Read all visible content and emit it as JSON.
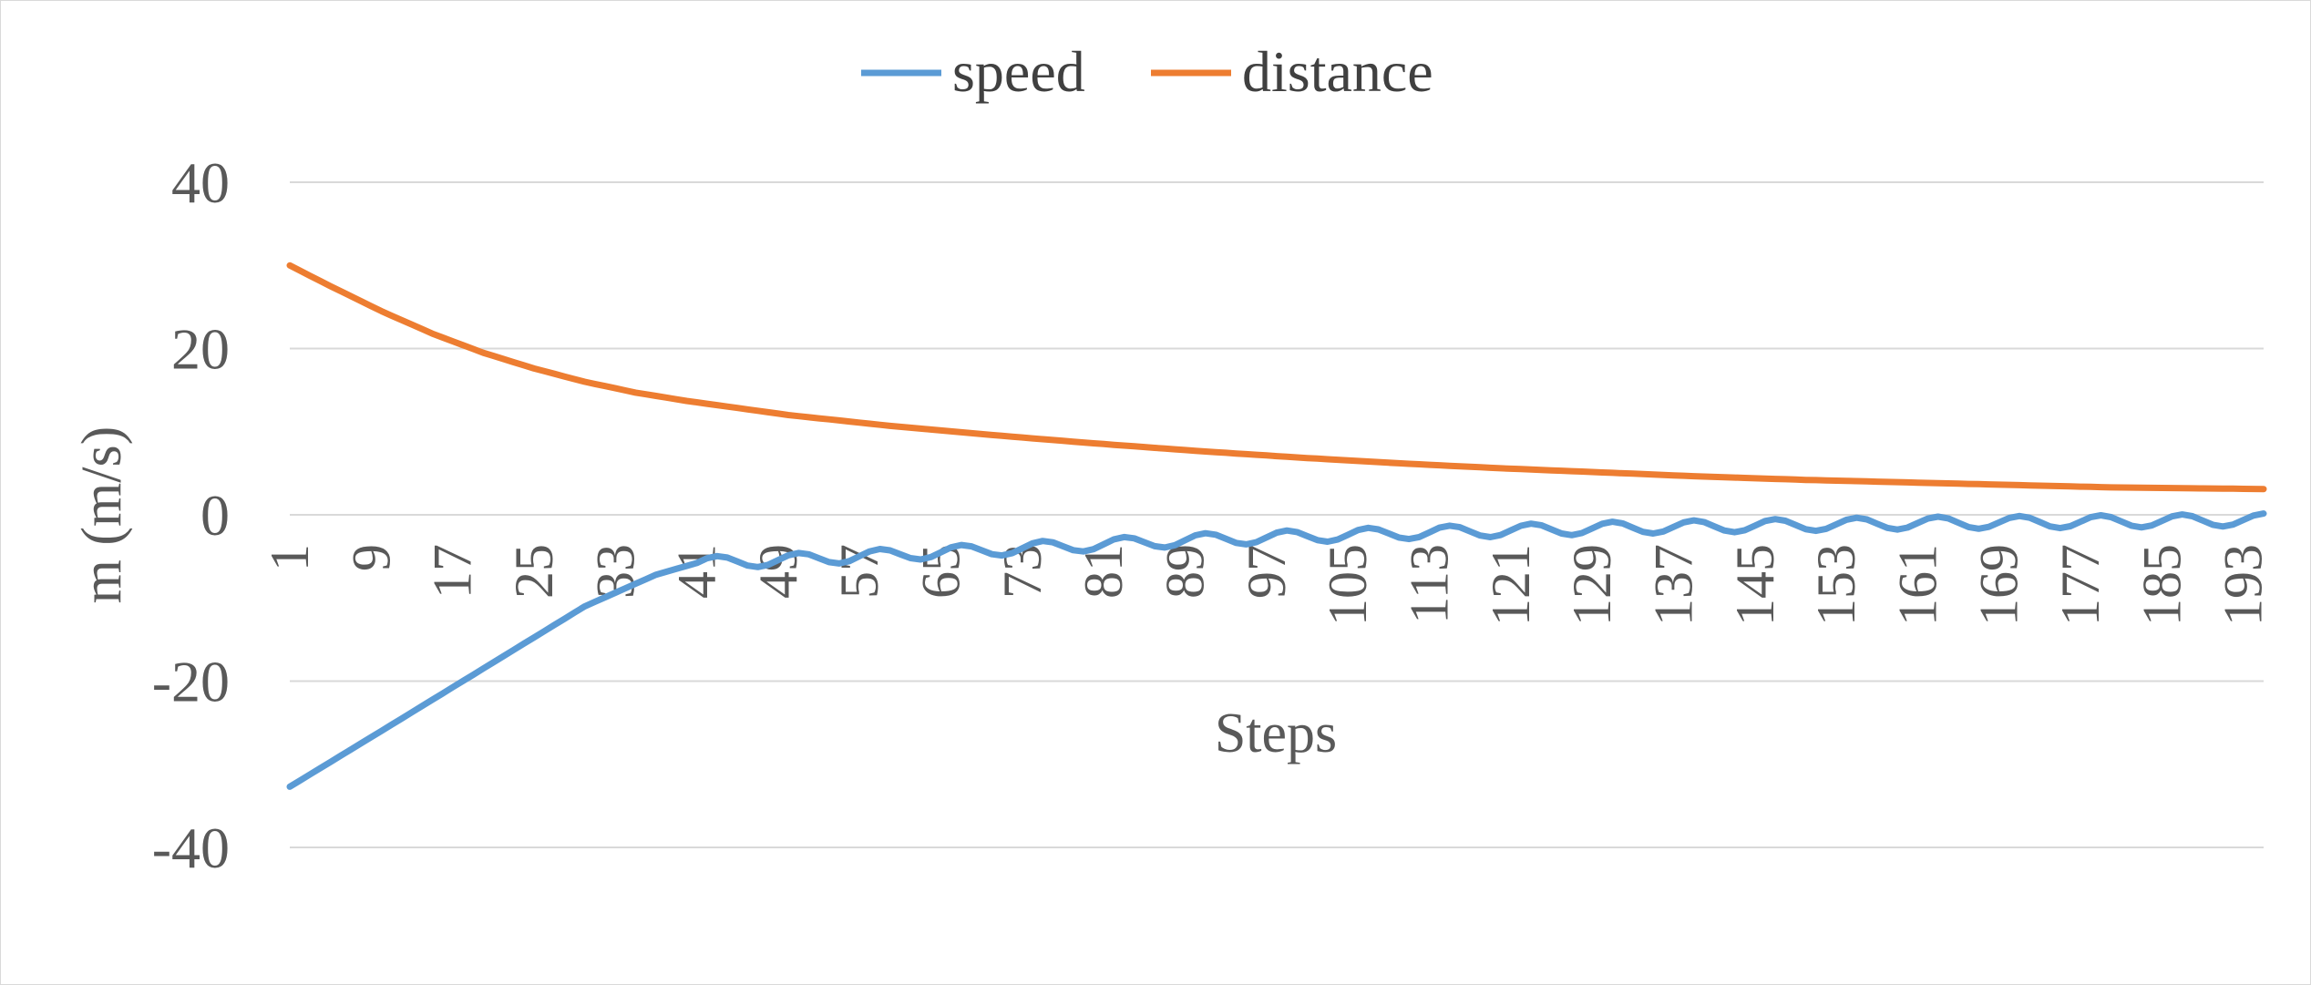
{
  "chart_data": {
    "type": "line",
    "title": "",
    "xlabel": "Steps",
    "ylabel": "m (m/s)",
    "ylim": [
      -40,
      40
    ],
    "yticks": [
      40,
      20,
      0,
      -20,
      -40
    ],
    "grid": true,
    "legend_position": "top-center",
    "x": {
      "start": 1,
      "end": 195,
      "step": 1
    },
    "x_tick_labels": [
      "1",
      "9",
      "17",
      "25",
      "33",
      "41",
      "49",
      "57",
      "65",
      "73",
      "81",
      "89",
      "97",
      "105",
      "113",
      "121",
      "129",
      "137",
      "145",
      "153",
      "161",
      "169",
      "177",
      "185",
      "193"
    ],
    "series": [
      {
        "name": "speed",
        "color": "#5b9bd5",
        "model": {
          "keypoints": [
            [
              1,
              -32.7
            ],
            [
              10,
              -26
            ],
            [
              20,
              -18.5
            ],
            [
              30,
              -11
            ],
            [
              37,
              -7.2
            ],
            [
              41,
              -5.8
            ],
            [
              50,
              -5.4
            ],
            [
              60,
              -4.8
            ],
            [
              70,
              -4.2
            ],
            [
              80,
              -3.6
            ],
            [
              90,
              -3.0
            ],
            [
              100,
              -2.6
            ],
            [
              110,
              -2.2
            ],
            [
              120,
              -1.9
            ],
            [
              130,
              -1.6
            ],
            [
              140,
              -1.4
            ],
            [
              150,
              -1.2
            ],
            [
              160,
              -1.0
            ],
            [
              170,
              -0.9
            ],
            [
              180,
              -0.8
            ],
            [
              195,
              -0.6
            ]
          ],
          "oscillation_amplitude": 0.75,
          "oscillation_period": 8,
          "oscillation_start": 41
        }
      },
      {
        "name": "distance",
        "color": "#ed7d31",
        "model": {
          "keypoints": [
            [
              1,
              30
            ],
            [
              5,
              27.5
            ],
            [
              10,
              24.5
            ],
            [
              15,
              21.8
            ],
            [
              20,
              19.5
            ],
            [
              25,
              17.6
            ],
            [
              30,
              16
            ],
            [
              35,
              14.7
            ],
            [
              40,
              13.7
            ],
            [
              50,
              12
            ],
            [
              60,
              10.7
            ],
            [
              70,
              9.6
            ],
            [
              80,
              8.6
            ],
            [
              90,
              7.7
            ],
            [
              100,
              6.9
            ],
            [
              110,
              6.2
            ],
            [
              120,
              5.6
            ],
            [
              130,
              5.1
            ],
            [
              140,
              4.6
            ],
            [
              150,
              4.2
            ],
            [
              160,
              3.9
            ],
            [
              170,
              3.6
            ],
            [
              180,
              3.3
            ],
            [
              195,
              3.1
            ]
          ]
        }
      }
    ]
  }
}
